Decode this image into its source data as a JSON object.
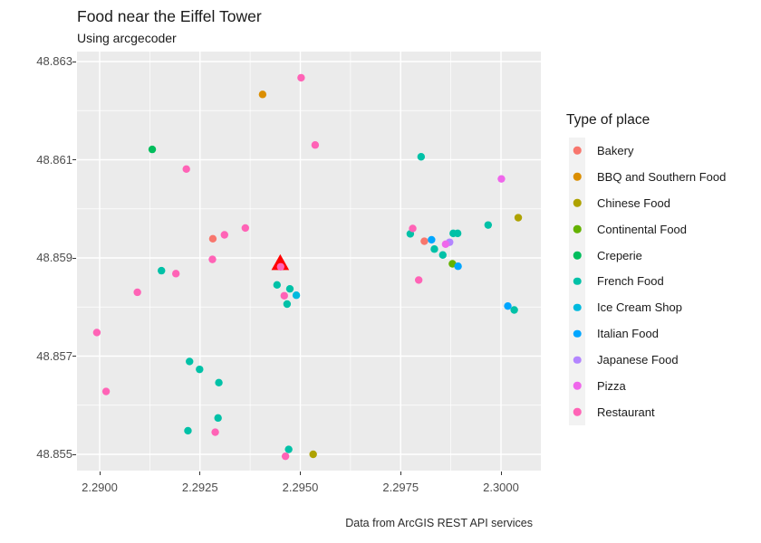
{
  "chart": {
    "title": "Food near the Eiffel Tower",
    "subtitle": "Using arcgecoder",
    "caption": "Data from ArcGIS REST API services"
  },
  "legend": {
    "title": "Type of place",
    "items": [
      {
        "label": "Bakery",
        "color": "#F8766D"
      },
      {
        "label": "BBQ and Southern Food",
        "color": "#DB8E00"
      },
      {
        "label": "Chinese Food",
        "color": "#AEA200"
      },
      {
        "label": "Continental Food",
        "color": "#64B200"
      },
      {
        "label": "Creperie",
        "color": "#00BD5C"
      },
      {
        "label": "French Food",
        "color": "#00C1A7"
      },
      {
        "label": "Ice Cream Shop",
        "color": "#00BADE"
      },
      {
        "label": "Italian Food",
        "color": "#00A6FF"
      },
      {
        "label": "Japanese Food",
        "color": "#B385FF"
      },
      {
        "label": "Pizza",
        "color": "#EF67EB"
      },
      {
        "label": "Restaurant",
        "color": "#FF63B6"
      }
    ]
  },
  "chart_data": {
    "type": "scatter",
    "title": "Food near the Eiffel Tower",
    "subtitle": "Using arcgecoder",
    "caption": "Data from ArcGIS REST API services",
    "xlabel": "",
    "ylabel": "",
    "legend_title": "Type of place",
    "legend_position": "right",
    "grid": true,
    "panel_color": "#EBEBEB",
    "gridline_color": "#FFFFFF",
    "x_ticks": [
      "2.2900",
      "2.2925",
      "2.2950",
      "2.2975",
      "2.3000"
    ],
    "y_ticks": [
      "48.863",
      "48.861",
      "48.859",
      "48.857",
      "48.855"
    ],
    "xlim": [
      2.28944,
      2.301
    ],
    "ylim": [
      48.85467,
      48.8632
    ],
    "marker": {
      "name": "eiffel-tower-marker",
      "shape": "triangle",
      "color": "#FF0000",
      "lon": 2.2945,
      "lat": 48.8589
    },
    "series": [
      {
        "name": "Bakery",
        "color": "#F8766D",
        "points": [
          [
            2.29282,
            48.85939
          ],
          [
            2.29809,
            48.85934
          ]
        ]
      },
      {
        "name": "BBQ and Southern Food",
        "color": "#DB8E00",
        "points": [
          [
            2.29406,
            48.86233
          ]
        ]
      },
      {
        "name": "Chinese Food",
        "color": "#AEA200",
        "points": [
          [
            2.30043,
            48.85982
          ],
          [
            2.29532,
            48.855
          ]
        ]
      },
      {
        "name": "Continental Food",
        "color": "#64B200",
        "points": [
          [
            2.29879,
            48.85888
          ]
        ]
      },
      {
        "name": "Creperie",
        "color": "#00BD5C",
        "points": [
          [
            2.29131,
            48.86121
          ]
        ]
      },
      {
        "name": "French Food",
        "color": "#00C1A7",
        "points": [
          [
            2.29801,
            48.86106
          ],
          [
            2.29154,
            48.85874
          ],
          [
            2.29442,
            48.85845
          ],
          [
            2.29474,
            48.85837
          ],
          [
            2.29467,
            48.85806
          ],
          [
            2.29774,
            48.85949
          ],
          [
            2.29834,
            48.85918
          ],
          [
            2.29881,
            48.8595
          ],
          [
            2.29892,
            48.8595
          ],
          [
            2.29855,
            48.85906
          ],
          [
            2.29968,
            48.85967
          ],
          [
            2.30033,
            48.85794
          ],
          [
            2.29224,
            48.85689
          ],
          [
            2.29249,
            48.85673
          ],
          [
            2.29297,
            48.85646
          ],
          [
            2.29295,
            48.85574
          ],
          [
            2.2922,
            48.85548
          ],
          [
            2.29471,
            48.8551
          ]
        ]
      },
      {
        "name": "Ice Cream Shop",
        "color": "#00BADE",
        "points": [
          [
            2.2949,
            48.85824
          ]
        ]
      },
      {
        "name": "Italian Food",
        "color": "#00A6FF",
        "points": [
          [
            2.29827,
            48.85937
          ],
          [
            2.29893,
            48.85883
          ],
          [
            2.30017,
            48.85802
          ]
        ]
      },
      {
        "name": "Japanese Food",
        "color": "#B385FF",
        "points": [
          [
            2.29872,
            48.85932
          ]
        ]
      },
      {
        "name": "Pizza",
        "color": "#EF67EB",
        "points": [
          [
            2.30001,
            48.86061
          ],
          [
            2.29862,
            48.85928
          ]
        ]
      },
      {
        "name": "Restaurant",
        "color": "#FF63B6",
        "points": [
          [
            2.29216,
            48.86081
          ],
          [
            2.29502,
            48.86267
          ],
          [
            2.29537,
            48.8613
          ],
          [
            2.29311,
            48.85947
          ],
          [
            2.29363,
            48.85961
          ],
          [
            2.29281,
            48.85897
          ],
          [
            2.2919,
            48.85868
          ],
          [
            2.29094,
            48.8583
          ],
          [
            2.28993,
            48.85748
          ],
          [
            2.29451,
            48.85882
          ],
          [
            2.2946,
            48.85823
          ],
          [
            2.2978,
            48.8596
          ],
          [
            2.29795,
            48.85855
          ],
          [
            2.29016,
            48.85628
          ],
          [
            2.29288,
            48.85545
          ],
          [
            2.29463,
            48.85496
          ]
        ]
      }
    ]
  }
}
